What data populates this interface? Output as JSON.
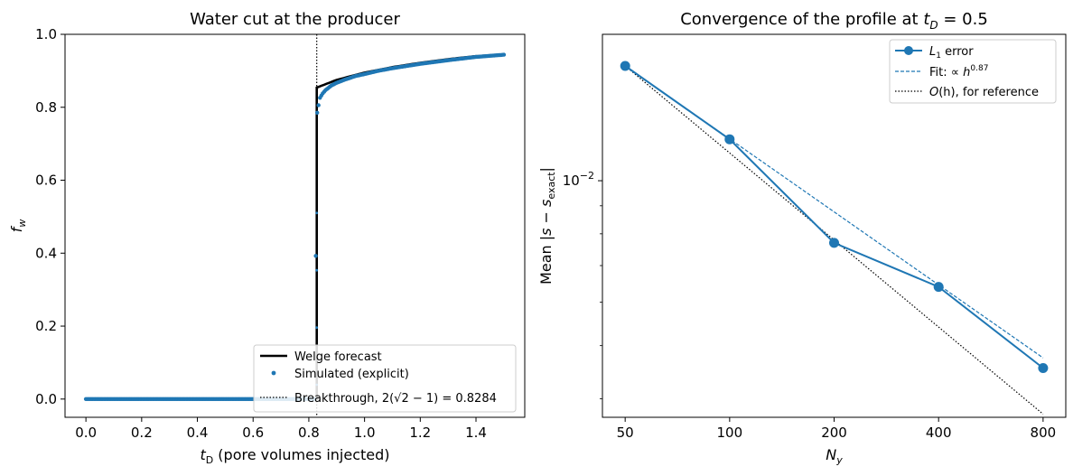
{
  "colors": {
    "blue": "#1f77b4",
    "black": "#000000"
  },
  "chart_data": [
    {
      "type": "line",
      "title": "Water cut at the producer",
      "xlabel_var": "t",
      "xlabel_sub": "D",
      "xlabel_rest": " (pore volumes injected)",
      "ylabel_var": "f",
      "ylabel_sub": "w",
      "xlim": [
        -0.075,
        1.575
      ],
      "ylim": [
        -0.05,
        1.0
      ],
      "xticks": [
        0.0,
        0.2,
        0.4,
        0.6,
        0.8,
        1.0,
        1.2,
        1.4
      ],
      "xtick_labels": [
        "0.0",
        "0.2",
        "0.4",
        "0.6",
        "0.8",
        "1.0",
        "1.2",
        "1.4"
      ],
      "yticks": [
        0.0,
        0.2,
        0.4,
        0.6,
        0.8,
        1.0
      ],
      "ytick_labels": [
        "0.0",
        "0.2",
        "0.4",
        "0.6",
        "0.8",
        "1.0"
      ],
      "breakthrough_x": 0.8284,
      "legend_location": "lower right",
      "legend": [
        "Welge forecast",
        "Simulated (explicit)",
        "Breakthrough, 2(√2 − 1) = 0.8284"
      ],
      "series": [
        {
          "name": "Welge forecast",
          "style": "solid-black-thick",
          "x": [
            0.0,
            0.81,
            0.8284,
            0.8284,
            0.9,
            1.0,
            1.1,
            1.2,
            1.3,
            1.4,
            1.5
          ],
          "y": [
            0.0,
            0.0,
            0.0,
            0.854,
            0.875,
            0.895,
            0.91,
            0.922,
            0.932,
            0.94,
            0.945
          ]
        },
        {
          "name": "Simulated (explicit)",
          "style": "dots-blue",
          "x": [
            0.8,
            0.81,
            0.82,
            0.83,
            0.84,
            0.85,
            0.86,
            0.87,
            0.88,
            0.9,
            0.93,
            0.97,
            1.0,
            1.05,
            1.1,
            1.2,
            1.3,
            1.4,
            1.5
          ],
          "y": [
            0.0,
            0.0,
            0.0,
            0.785,
            0.826,
            0.838,
            0.847,
            0.853,
            0.859,
            0.867,
            0.876,
            0.886,
            0.891,
            0.9,
            0.907,
            0.919,
            0.929,
            0.938,
            0.944
          ]
        }
      ]
    },
    {
      "type": "line",
      "title_prefix": "Convergence of the profile at ",
      "title_var": "t",
      "title_sub": "D",
      "title_suffix": " = 0.5",
      "xlabel_var": "N",
      "xlabel_sub": "y",
      "ylabel_prefix": "Mean |",
      "ylabel_var1": "s",
      "ylabel_mid": " − ",
      "ylabel_var2": "s",
      "ylabel_sub": "exact",
      "ylabel_suffix": "|",
      "x_scale": "log",
      "y_scale": "log",
      "xlim": [
        43,
        930
      ],
      "ylim": [
        0.0037,
        0.0185
      ],
      "xticks": [
        50,
        100,
        200,
        400,
        800
      ],
      "xtick_labels": [
        "50",
        "100",
        "200",
        "400",
        "800"
      ],
      "ytick_major": 0.01,
      "ytick_major_base": "10",
      "ytick_major_exp": "−2",
      "legend_location": "upper right",
      "legend": [
        {
          "sym": "L",
          "sub": "1",
          "text": " error"
        },
        {
          "text": "Fit: ∝ ",
          "sym": "h",
          "sup": "0.87"
        },
        {
          "sym": "O",
          "text": "(h), for reference"
        }
      ],
      "series": [
        {
          "name": "L1 error",
          "x": [
            50,
            100,
            200,
            400,
            800
          ],
          "y": [
            0.0162,
            0.0119,
            0.0077,
            0.0064,
            0.00455
          ]
        },
        {
          "name": "Fit",
          "x": [
            50,
            800
          ],
          "y": [
            0.0162,
            0.00475
          ]
        },
        {
          "name": "O(h), for reference",
          "x": [
            50,
            800
          ],
          "y": [
            0.0162,
            0.00375
          ]
        }
      ]
    }
  ]
}
